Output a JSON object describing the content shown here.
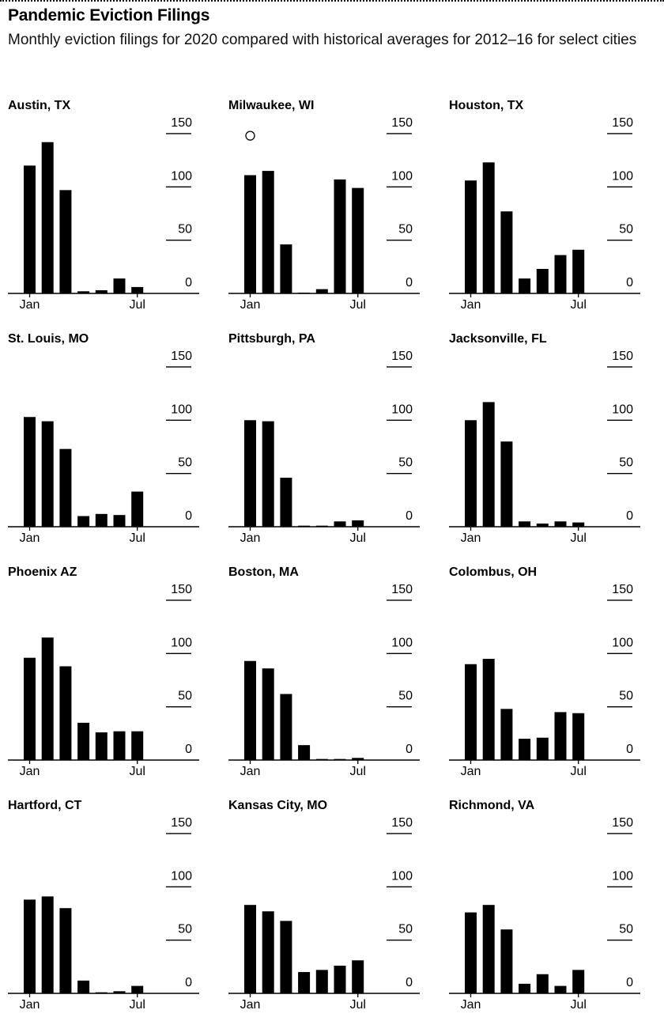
{
  "header": {
    "title": "Pandemic Eviction Filings",
    "subtitle": "Monthly eviction filings for 2020 compared with historical averages for 2012–16 for select cities"
  },
  "colors": {
    "bar": "#000000",
    "axis": "#000000",
    "text": "#000000",
    "background": "#ffffff"
  },
  "chart_data": [
    {
      "type": "bar",
      "title": "Austin, TX",
      "categories": [
        "Jan",
        "Feb",
        "Mar",
        "Apr",
        "May",
        "Jun",
        "Jul"
      ],
      "values": [
        120,
        142,
        97,
        2,
        3,
        14,
        6
      ],
      "ylim": [
        0,
        150
      ],
      "yticks": [
        150,
        100,
        50,
        0
      ],
      "xtick_labels": [
        "Jan",
        "Jul"
      ],
      "ylabel": "",
      "xlabel": ""
    },
    {
      "type": "bar",
      "title": "Milwaukee, WI",
      "categories": [
        "Jan",
        "Feb",
        "Mar",
        "Apr",
        "May",
        "Jun",
        "Jul"
      ],
      "values": [
        111,
        115,
        46,
        0,
        4,
        107,
        99
      ],
      "ylim": [
        0,
        150
      ],
      "yticks": [
        150,
        100,
        50,
        0
      ],
      "xtick_labels": [
        "Jan",
        "Jul"
      ],
      "marker": {
        "label": "○",
        "category": "Jan",
        "value": 148
      }
    },
    {
      "type": "bar",
      "title": "Houston, TX",
      "categories": [
        "Jan",
        "Feb",
        "Mar",
        "Apr",
        "May",
        "Jun",
        "Jul"
      ],
      "values": [
        106,
        123,
        77,
        14,
        23,
        36,
        41
      ],
      "ylim": [
        0,
        150
      ],
      "yticks": [
        150,
        100,
        50,
        0
      ],
      "xtick_labels": [
        "Jan",
        "Jul"
      ]
    },
    {
      "type": "bar",
      "title": "St. Louis, MO",
      "categories": [
        "Jan",
        "Feb",
        "Mar",
        "Apr",
        "May",
        "Jun",
        "Jul"
      ],
      "values": [
        103,
        99,
        73,
        10,
        12,
        11,
        33
      ],
      "ylim": [
        0,
        150
      ],
      "yticks": [
        150,
        100,
        50,
        0
      ],
      "xtick_labels": [
        "Jan",
        "Jul"
      ]
    },
    {
      "type": "bar",
      "title": "Pittsburgh, PA",
      "categories": [
        "Jan",
        "Feb",
        "Mar",
        "Apr",
        "May",
        "Jun",
        "Jul"
      ],
      "values": [
        100,
        99,
        46,
        1,
        1,
        5,
        6
      ],
      "ylim": [
        0,
        150
      ],
      "yticks": [
        150,
        100,
        50,
        0
      ],
      "xtick_labels": [
        "Jan",
        "Jul"
      ]
    },
    {
      "type": "bar",
      "title": "Jacksonville, FL",
      "categories": [
        "Jan",
        "Feb",
        "Mar",
        "Apr",
        "May",
        "Jun",
        "Jul"
      ],
      "values": [
        100,
        117,
        80,
        5,
        3,
        5,
        4
      ],
      "ylim": [
        0,
        150
      ],
      "yticks": [
        150,
        100,
        50,
        0
      ],
      "xtick_labels": [
        "Jan",
        "Jul"
      ]
    },
    {
      "type": "bar",
      "title": "Phoenix AZ",
      "categories": [
        "Jan",
        "Feb",
        "Mar",
        "Apr",
        "May",
        "Jun",
        "Jul"
      ],
      "values": [
        96,
        115,
        88,
        35,
        26,
        27,
        27
      ],
      "ylim": [
        0,
        150
      ],
      "yticks": [
        150,
        100,
        50,
        0
      ],
      "xtick_labels": [
        "Jan",
        "Jul"
      ]
    },
    {
      "type": "bar",
      "title": "Boston, MA",
      "categories": [
        "Jan",
        "Feb",
        "Mar",
        "Apr",
        "May",
        "Jun",
        "Jul"
      ],
      "values": [
        93,
        86,
        62,
        14,
        1,
        1,
        2
      ],
      "ylim": [
        0,
        150
      ],
      "yticks": [
        150,
        100,
        50,
        0
      ],
      "xtick_labels": [
        "Jan",
        "Jul"
      ]
    },
    {
      "type": "bar",
      "title": "Colombus, OH",
      "categories": [
        "Jan",
        "Feb",
        "Mar",
        "Apr",
        "May",
        "Jun",
        "Jul"
      ],
      "values": [
        90,
        95,
        48,
        20,
        21,
        45,
        44
      ],
      "ylim": [
        0,
        150
      ],
      "yticks": [
        150,
        100,
        50,
        0
      ],
      "xtick_labels": [
        "Jan",
        "Jul"
      ]
    },
    {
      "type": "bar",
      "title": "Hartford, CT",
      "categories": [
        "Jan",
        "Feb",
        "Mar",
        "Apr",
        "May",
        "Jun",
        "Jul"
      ],
      "values": [
        88,
        91,
        80,
        12,
        1,
        2,
        7
      ],
      "ylim": [
        0,
        150
      ],
      "yticks": [
        150,
        100,
        50,
        0
      ],
      "xtick_labels": [
        "Jan",
        "Jul"
      ]
    },
    {
      "type": "bar",
      "title": "Kansas City, MO",
      "categories": [
        "Jan",
        "Feb",
        "Mar",
        "Apr",
        "May",
        "Jun",
        "Jul"
      ],
      "values": [
        83,
        77,
        68,
        20,
        22,
        26,
        31
      ],
      "ylim": [
        0,
        150
      ],
      "yticks": [
        150,
        100,
        50,
        0
      ],
      "xtick_labels": [
        "Jan",
        "Jul"
      ]
    },
    {
      "type": "bar",
      "title": "Richmond, VA",
      "categories": [
        "Jan",
        "Feb",
        "Mar",
        "Apr",
        "May",
        "Jun",
        "Jul"
      ],
      "values": [
        76,
        83,
        60,
        9,
        18,
        7,
        22
      ],
      "ylim": [
        0,
        150
      ],
      "yticks": [
        150,
        100,
        50,
        0
      ],
      "xtick_labels": [
        "Jan",
        "Jul"
      ]
    }
  ]
}
